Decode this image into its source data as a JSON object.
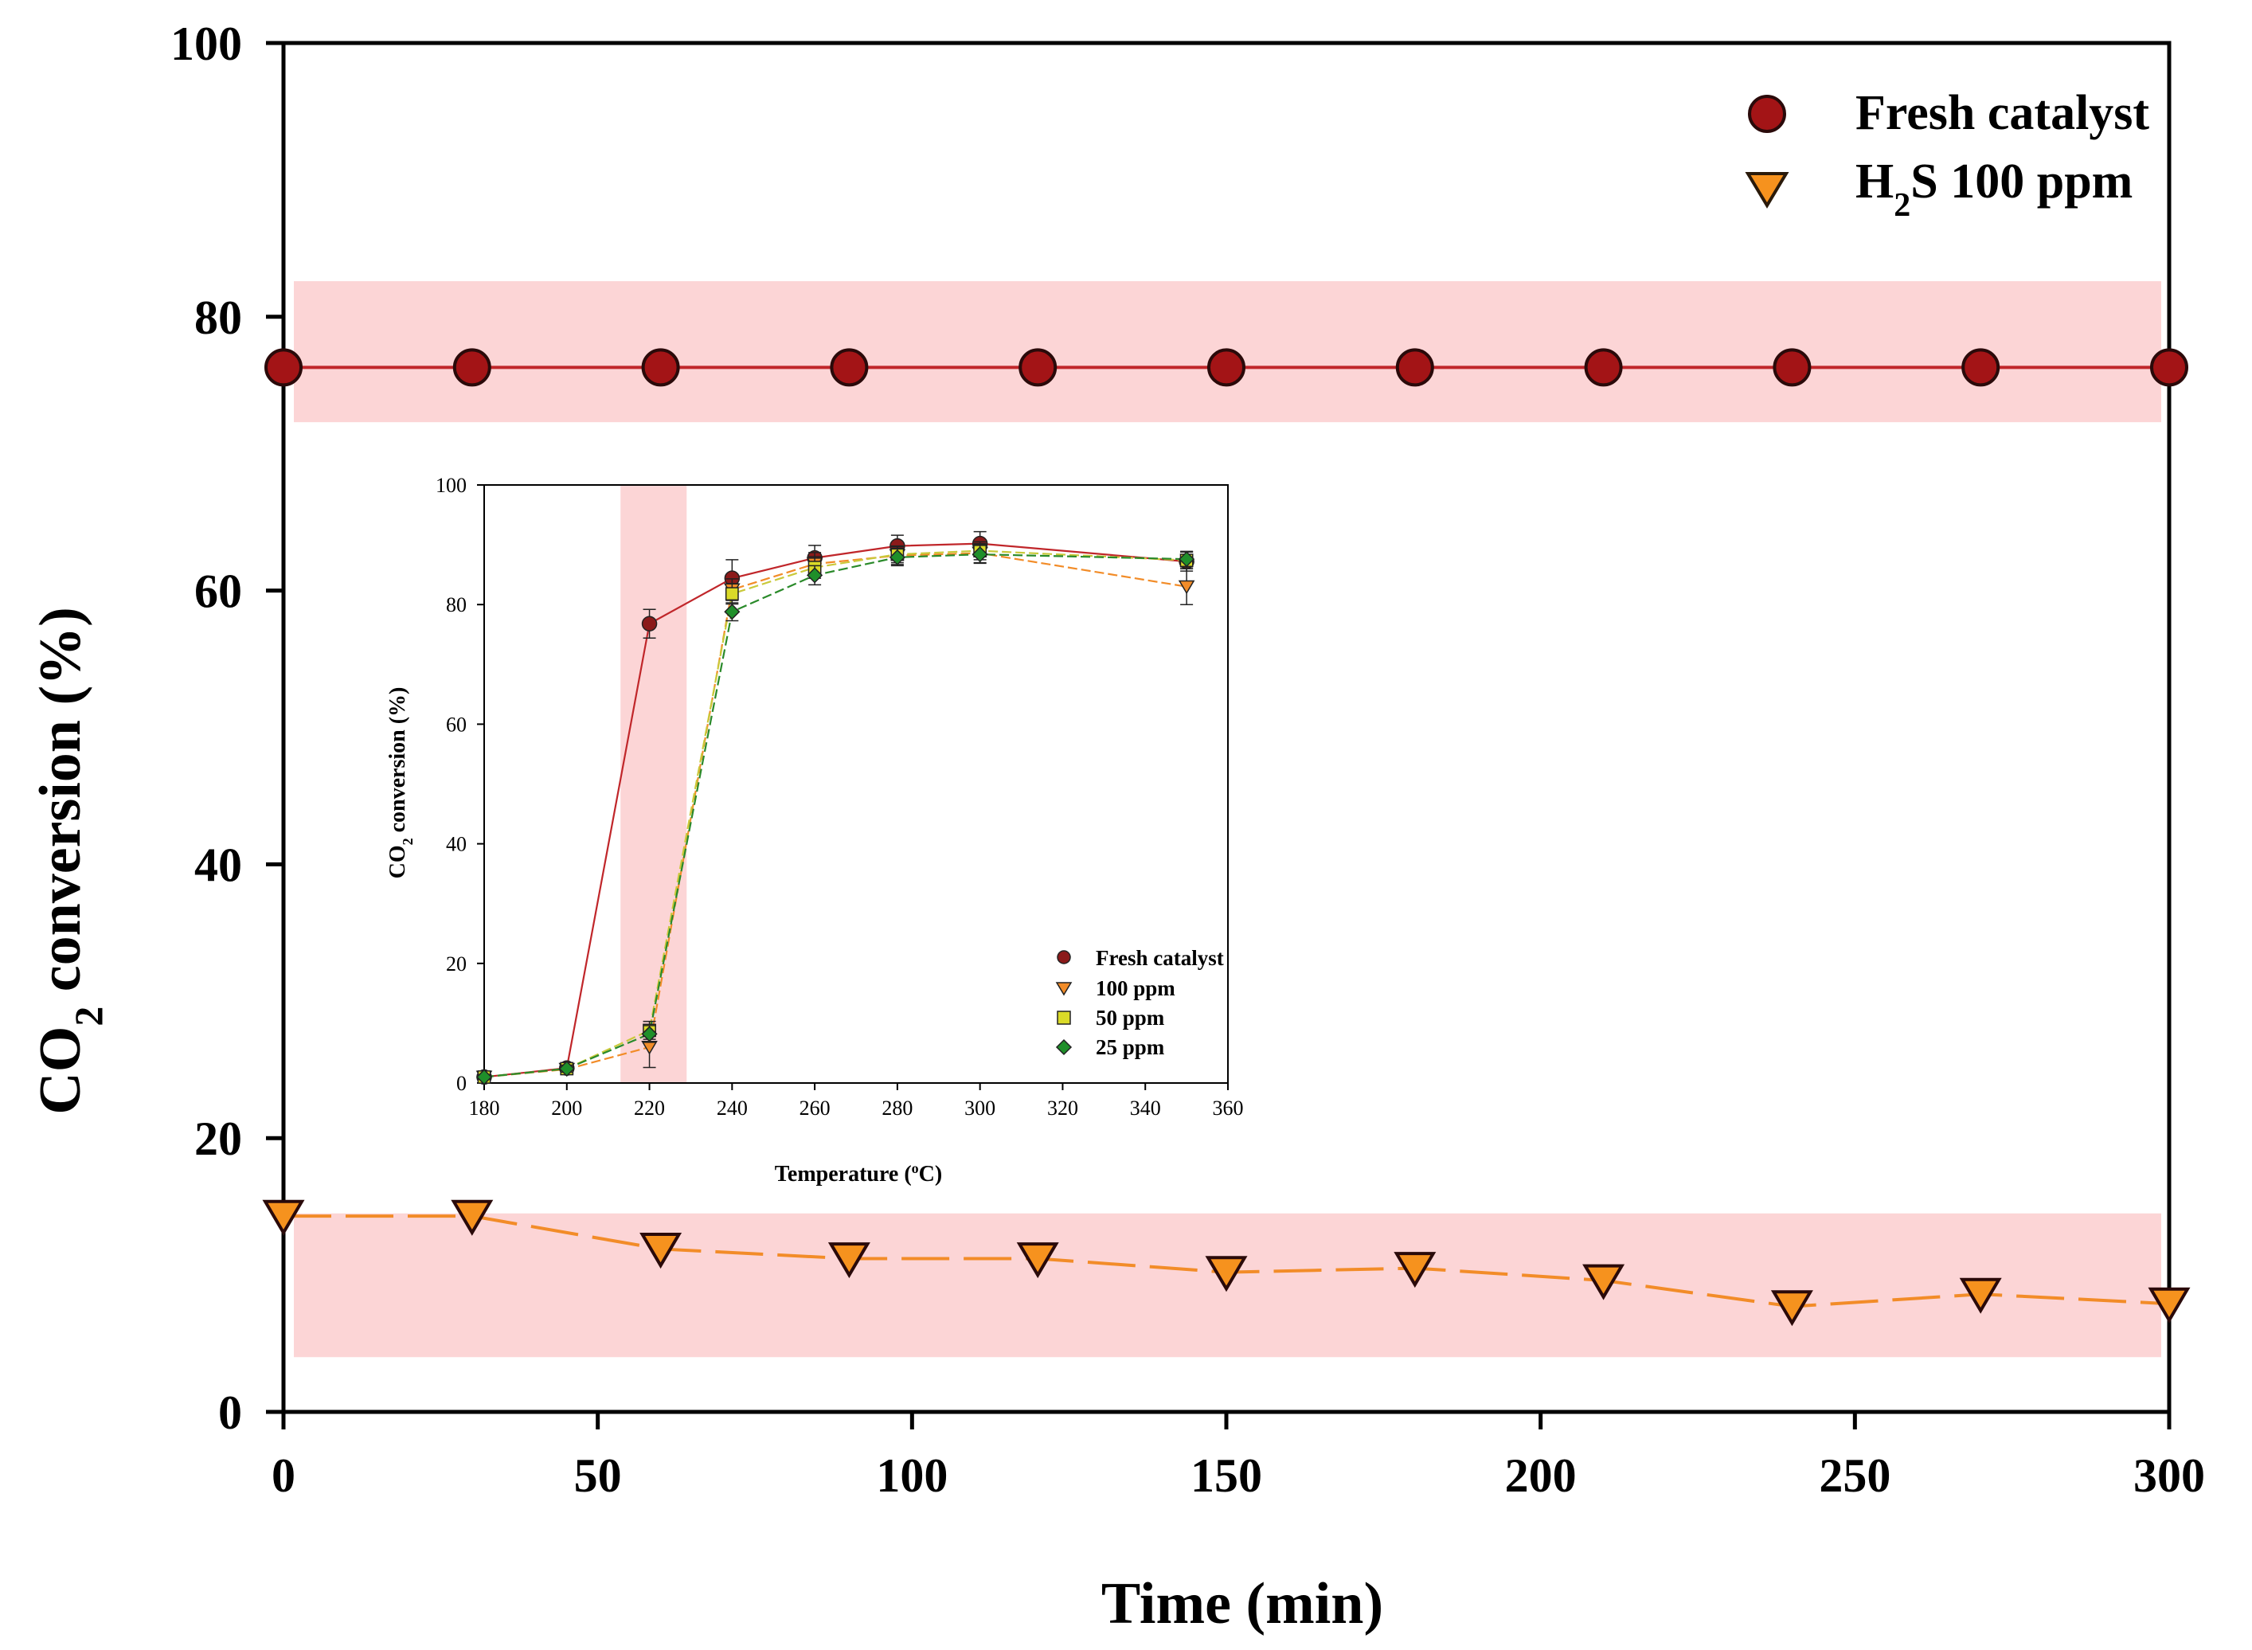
{
  "chart_data": [
    {
      "id": "main",
      "type": "line",
      "title": "",
      "xlabel": "Time (min)",
      "ylabel_main": "CO",
      "ylabel_sub": "2",
      "ylabel_rest": " conversion (%)",
      "xlim": [
        0,
        300
      ],
      "ylim": [
        0,
        100
      ],
      "xticks": [
        0,
        50,
        100,
        150,
        200,
        250,
        300
      ],
      "yticks": [
        0,
        20,
        40,
        60,
        80,
        100
      ],
      "legend_position": "top-right",
      "bands": [
        {
          "y0": 72.3,
          "y1": 82.6,
          "color": "#fcd5d6"
        },
        {
          "y0": 4.0,
          "y1": 14.5,
          "color": "#fcd5d6"
        }
      ],
      "series": [
        {
          "name": "Fresh catalyst",
          "marker": "circle",
          "line_style": "solid",
          "color": "#c0262a",
          "marker_fill": "#a31416",
          "x": [
            0,
            30,
            60,
            90,
            120,
            150,
            180,
            210,
            240,
            270,
            300
          ],
          "y": [
            76.3,
            76.3,
            76.3,
            76.3,
            76.3,
            76.3,
            76.3,
            76.3,
            76.3,
            76.3,
            76.3
          ]
        },
        {
          "name_main": "H",
          "name_sub": "2",
          "name_rest": "S 100 ppm",
          "marker": "triangle-down",
          "line_style": "dashed",
          "color": "#f28c28",
          "marker_fill": "#f6921e",
          "x": [
            0,
            30,
            60,
            90,
            120,
            150,
            180,
            210,
            240,
            270,
            300
          ],
          "y": [
            14.3,
            14.3,
            11.9,
            11.2,
            11.2,
            10.2,
            10.5,
            9.6,
            7.7,
            8.6,
            7.9
          ]
        }
      ]
    },
    {
      "id": "inset",
      "type": "line",
      "title": "",
      "xlabel_main": "Temperature (",
      "xlabel_sup": "o",
      "xlabel_rest": "C)",
      "ylabel_main": "CO",
      "ylabel_sub": "2",
      "ylabel_rest": " conversion (%)",
      "xlim": [
        180,
        360
      ],
      "ylim": [
        0,
        100
      ],
      "xticks": [
        180,
        200,
        220,
        240,
        260,
        280,
        300,
        320,
        340,
        360
      ],
      "yticks": [
        0,
        20,
        40,
        60,
        80,
        100
      ],
      "legend_position": "bottom-right",
      "band_x": [
        213,
        229
      ],
      "band_color": "#fcd5d6",
      "series": [
        {
          "name": "Fresh catalyst",
          "marker": "circle",
          "color": "#c0262a",
          "line_style": "solid",
          "marker_fill": "#8b1a1a",
          "x": [
            180,
            200,
            220,
            240,
            260,
            280,
            300,
            350
          ],
          "y": [
            1.0,
            2.5,
            76.8,
            84.4,
            87.8,
            89.8,
            90.2,
            87.2
          ],
          "err": [
            0.4,
            0.6,
            2.4,
            3.1,
            2.1,
            1.8,
            2.0,
            1.6
          ]
        },
        {
          "name": "100 ppm",
          "marker": "triangle-down",
          "color": "#f28c28",
          "line_style": "dashed",
          "marker_fill": "#f28c28",
          "x": [
            180,
            200,
            220,
            240,
            260,
            280,
            300,
            350
          ],
          "y": [
            1.0,
            2.3,
            6.0,
            82.5,
            86.8,
            88.2,
            88.6,
            83.0
          ],
          "err": [
            0.4,
            0.6,
            3.4,
            1.8,
            1.9,
            1.5,
            1.6,
            3.0
          ]
        },
        {
          "name": "50 ppm",
          "marker": "square",
          "color": "#c9c93a",
          "line_style": "dashed",
          "marker_fill": "#dada28",
          "x": [
            180,
            200,
            220,
            240,
            260,
            280,
            300,
            350
          ],
          "y": [
            1.0,
            2.4,
            8.8,
            81.8,
            86.2,
            88.4,
            89.0,
            87.4
          ],
          "err": [
            0.4,
            0.6,
            1.5,
            1.7,
            1.8,
            1.4,
            1.5,
            1.4
          ]
        },
        {
          "name": "25 ppm",
          "marker": "diamond",
          "color": "#2a8a2a",
          "line_style": "dashed",
          "marker_fill": "#1f8f2a",
          "x": [
            180,
            200,
            220,
            240,
            260,
            280,
            300,
            350
          ],
          "y": [
            1.0,
            2.4,
            8.2,
            78.8,
            84.9,
            87.9,
            88.4,
            87.6
          ],
          "err": [
            0.4,
            0.6,
            1.4,
            1.5,
            1.6,
            1.4,
            1.5,
            1.3
          ]
        }
      ]
    }
  ]
}
